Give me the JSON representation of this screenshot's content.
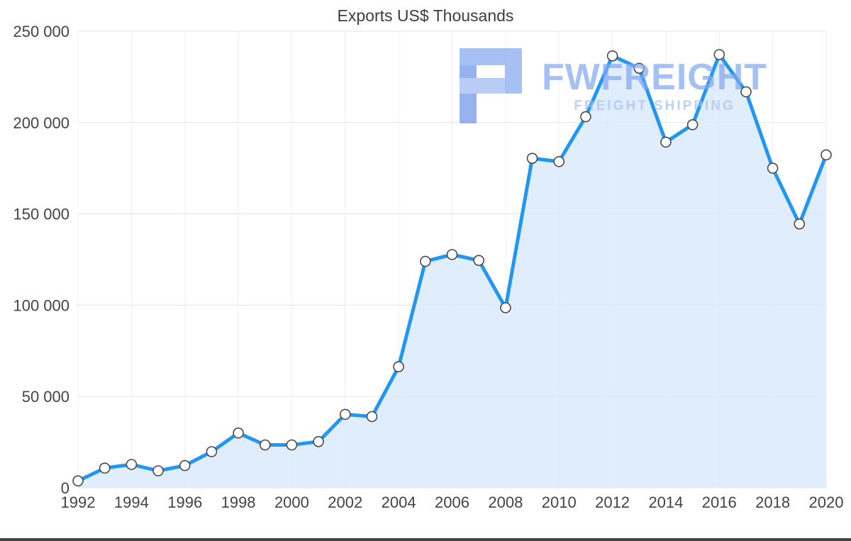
{
  "title": "Exports US$ Thousands",
  "watermark": {
    "brand": "FWFREIGHT",
    "tagline": "FREIGHT SHIPPING"
  },
  "chart_data": {
    "type": "area",
    "title": "Exports US$ Thousands",
    "x": [
      1992,
      1993,
      1994,
      1995,
      1996,
      1997,
      1998,
      1999,
      2000,
      2001,
      2002,
      2003,
      2004,
      2005,
      2006,
      2007,
      2008,
      2009,
      2010,
      2011,
      2012,
      2013,
      2014,
      2015,
      2016,
      2017,
      2018,
      2019,
      2020
    ],
    "values": [
      3800,
      10800,
      12800,
      9300,
      12200,
      19800,
      30000,
      23500,
      23500,
      25300,
      40200,
      39000,
      66300,
      124000,
      127700,
      124500,
      98600,
      180400,
      178600,
      203200,
      236500,
      229700,
      189300,
      198800,
      237200,
      216800,
      175000,
      144500,
      182300
    ],
    "xlim": [
      1992,
      2020
    ],
    "ylim": [
      0,
      250000
    ],
    "yticks": [
      0,
      50000,
      100000,
      150000,
      200000,
      250000
    ],
    "ytick_labels": [
      "0",
      "50 000",
      "100 000",
      "150 000",
      "200 000",
      "250 000"
    ],
    "xticks": [
      1992,
      1994,
      1996,
      1998,
      2000,
      2002,
      2004,
      2006,
      2008,
      2010,
      2012,
      2014,
      2016,
      2018,
      2020
    ],
    "xtick_labels": [
      "1992",
      "1994",
      "1996",
      "1998",
      "2000",
      "2002",
      "2004",
      "2006",
      "2008",
      "2010",
      "2012",
      "2014",
      "2016",
      "2018",
      "2020"
    ],
    "grid": "both",
    "legend": "none",
    "colors": {
      "line": "#2196f3",
      "fill": "#dbeafb",
      "marker_fill": "#ffffff",
      "marker_stroke": "#4a4a4a",
      "hgrid": "#e3e3e3",
      "vgrid": "#f0f0f0",
      "axis_text": "#434343"
    }
  }
}
